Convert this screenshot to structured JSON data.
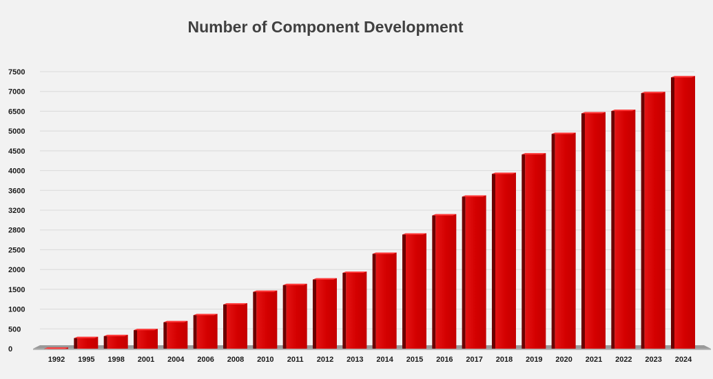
{
  "chart_data": {
    "type": "bar",
    "title": "Number of Component Development",
    "xlabel": "",
    "ylabel": "",
    "categories": [
      "1992",
      "1995",
      "1998",
      "2001",
      "2004",
      "2006",
      "2008",
      "2010",
      "2011",
      "2012",
      "2013",
      "2014",
      "2015",
      "2016",
      "2017",
      "2018",
      "2019",
      "2020",
      "2021",
      "2022",
      "2023",
      "2024"
    ],
    "values": [
      30,
      300,
      350,
      500,
      700,
      880,
      1150,
      1470,
      1640,
      1780,
      1950,
      2430,
      2750,
      3120,
      3500,
      3960,
      4440,
      4960,
      6440,
      6540,
      6990,
      7390
    ],
    "y_ticks": [
      "0",
      "500",
      "1000",
      "1500",
      "2000",
      "2500",
      "2800",
      "3200",
      "3600",
      "4000",
      "4500",
      "5000",
      "6500",
      "7000",
      "7500"
    ],
    "grid": true,
    "legend": "none",
    "colors": {
      "bar": "#d40000",
      "bar_side": "#6b0000",
      "bar_top": "#ff3a3a",
      "background": "#f2f2f2",
      "grid": "#d9d9d9",
      "floor": "#9a9a9a"
    }
  }
}
